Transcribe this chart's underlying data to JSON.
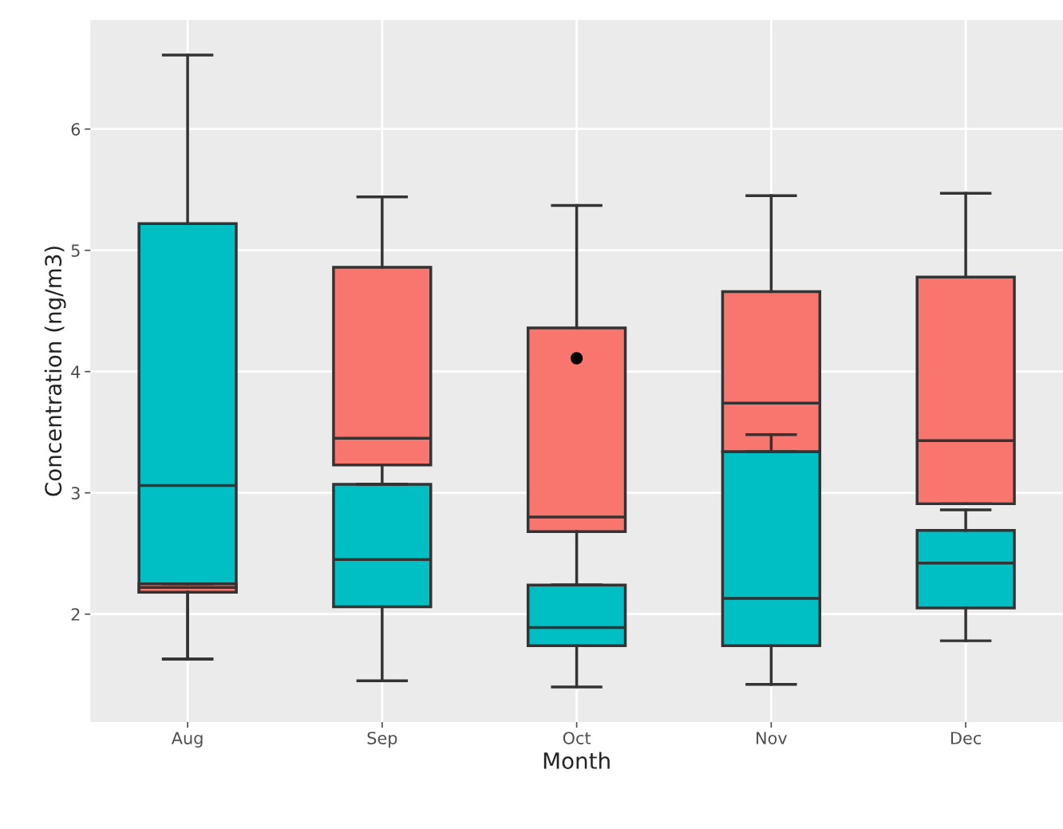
{
  "chart_data": {
    "type": "box",
    "xlabel": "Month",
    "ylabel": "Concentration (ng/m3)",
    "categories": [
      "Aug",
      "Sep",
      "Oct",
      "Nov",
      "Dec"
    ],
    "ylim": [
      1.11,
      6.9
    ],
    "yticks": [
      2,
      3,
      4,
      5,
      6
    ],
    "grid": true,
    "legend": false,
    "series": [
      {
        "color": "#00bfc4",
        "boxes": [
          {
            "low": 1.63,
            "q1": 2.18,
            "median": 3.06,
            "q3": 5.22,
            "high": 6.61
          },
          {
            "low": 1.45,
            "q1": 2.06,
            "median": 2.45,
            "q3": 3.07,
            "high": 3.07
          },
          {
            "low": 1.4,
            "q1": 1.74,
            "median": 1.89,
            "q3": 2.24,
            "high": 2.24,
            "outliers": [
              4.11
            ]
          },
          {
            "low": 1.42,
            "q1": 1.74,
            "median": 2.13,
            "q3": 3.34,
            "high": 3.48
          },
          {
            "low": 1.78,
            "q1": 2.05,
            "median": 2.42,
            "q3": 2.69,
            "high": 2.86
          }
        ]
      },
      {
        "color": "#f8766d",
        "boxes": [
          {
            "low": 1.63,
            "q1": 2.18,
            "median": 2.22,
            "q3": 2.25,
            "high": 2.25
          },
          {
            "low": 3.07,
            "q1": 3.23,
            "median": 3.45,
            "q3": 4.86,
            "high": 5.44
          },
          {
            "low": 2.24,
            "q1": 2.68,
            "median": 2.8,
            "q3": 4.36,
            "high": 5.37
          },
          {
            "low": 3.34,
            "q1": 3.34,
            "median": 3.74,
            "q3": 4.66,
            "high": 5.45
          },
          {
            "low": 2.91,
            "q1": 2.91,
            "median": 3.43,
            "q3": 4.78,
            "high": 5.47
          }
        ]
      }
    ]
  }
}
